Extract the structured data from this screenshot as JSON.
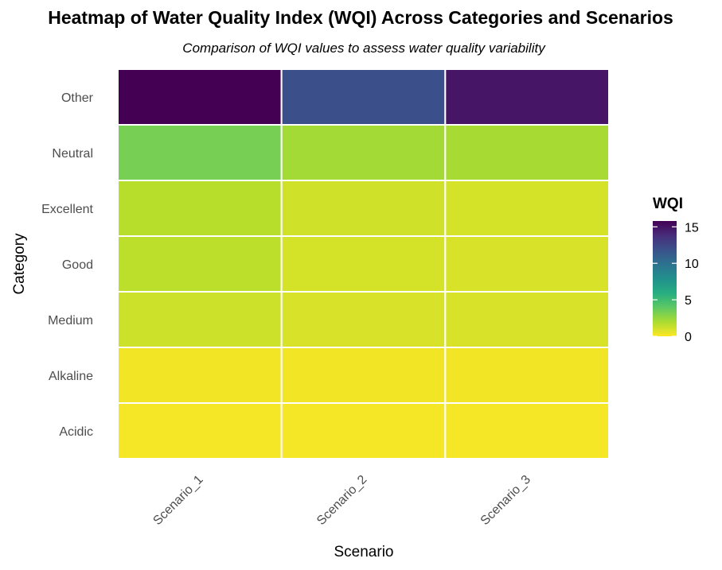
{
  "chart_data": {
    "type": "heatmap",
    "title": "Heatmap of Water Quality Index (WQI) Across Categories and Scenarios",
    "subtitle": "Comparison of WQI values to assess water quality variability",
    "xlabel": "Scenario",
    "ylabel": "Category",
    "x_categories": [
      "Scenario_1",
      "Scenario_2",
      "Scenario_3"
    ],
    "y_categories": [
      "Acidic",
      "Alkaline",
      "Medium",
      "Good",
      "Excellent",
      "Neutral",
      "Other"
    ],
    "values": [
      [
        0.2,
        0.2,
        0.2
      ],
      [
        0.3,
        0.3,
        0.3
      ],
      [
        1.2,
        0.9,
        0.9
      ],
      [
        1.6,
        1.0,
        0.9
      ],
      [
        1.7,
        1.1,
        1.0
      ],
      [
        3.3,
        2.2,
        2.1
      ],
      [
        15.8,
        11.9,
        14.9
      ]
    ],
    "legend": {
      "title": "WQI",
      "ticks": [
        0,
        5,
        10,
        15
      ],
      "range": [
        0,
        15.8
      ],
      "colormap": "viridis-reversed",
      "position": "right"
    },
    "grid": false,
    "cell_border_color": "#ffffff"
  }
}
